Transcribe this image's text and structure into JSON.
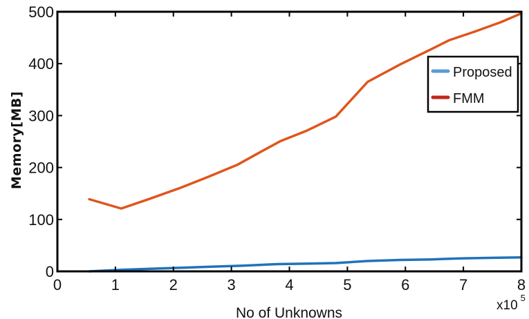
{
  "chart_data": {
    "type": "line",
    "xlabel": "No of Unknowns",
    "ylabel": "Memory[MB]",
    "x_multiplier": {
      "base": "x10",
      "exponent": "5"
    },
    "xlim": [
      0,
      8
    ],
    "ylim": [
      0,
      500
    ],
    "xticks": [
      "0",
      "1",
      "2",
      "3",
      "4",
      "5",
      "6",
      "7",
      "8"
    ],
    "yticks": [
      "0",
      "100",
      "200",
      "300",
      "400",
      "500"
    ],
    "grid": false,
    "legend_position": "top-right",
    "series": [
      {
        "name": "Proposed",
        "color": "#1f72bb",
        "legend_color": "#5b9bd5",
        "x": [
          0.55,
          1.1,
          1.6,
          2.15,
          2.65,
          3.2,
          3.8,
          4.35,
          4.8,
          5.35,
          5.9,
          6.45,
          6.95,
          7.5,
          8.0
        ],
        "y": [
          0,
          3,
          5,
          7,
          9,
          11,
          14,
          15,
          16,
          20,
          22,
          23,
          25,
          26,
          27
        ]
      },
      {
        "name": "FMM",
        "color": "#e0541c",
        "legend_color": "#c0281c",
        "x": [
          0.55,
          1.1,
          1.6,
          2.1,
          2.6,
          3.1,
          3.55,
          3.85,
          4.3,
          4.8,
          5.35,
          5.9,
          6.45,
          6.75,
          7.2,
          7.65,
          8.0
        ],
        "y": [
          139,
          121,
          140,
          160,
          182,
          205,
          233,
          251,
          271,
          298,
          365,
          398,
          428,
          445,
          462,
          480,
          497
        ]
      }
    ]
  }
}
